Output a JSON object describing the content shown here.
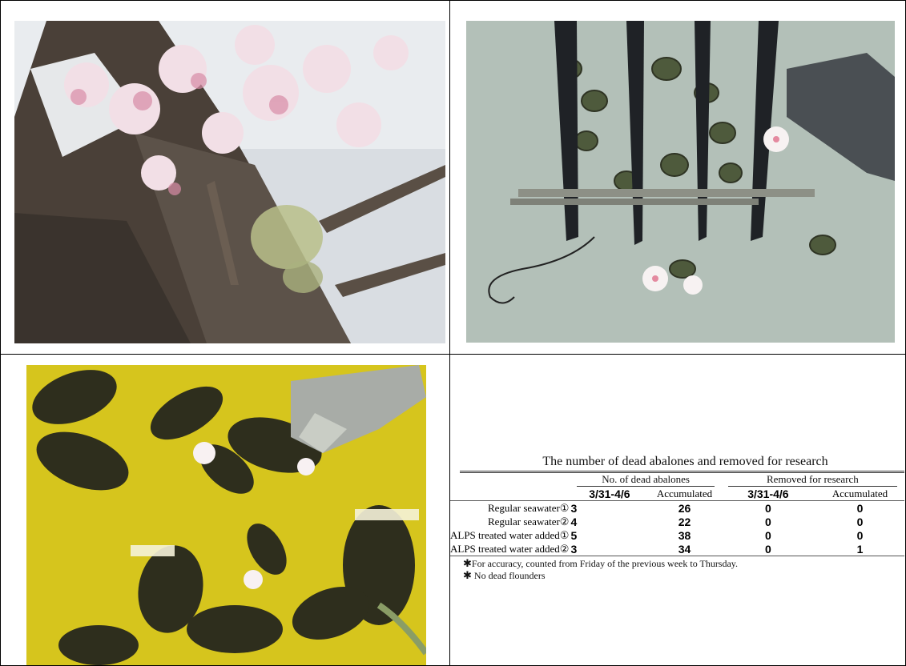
{
  "photos": {
    "cherry_blossoms": "cherry-blossom-photo",
    "abalone_tank": "abalone-tank-photo",
    "flounder_tank": "flounder-tank-photo"
  },
  "table": {
    "title": "The number of dead abalones and removed for research",
    "groups": [
      "No. of dead abalones",
      "Removed for research"
    ],
    "subheaders": [
      "3/31-4/6",
      "Accumulated",
      "3/31-4/6",
      "Accumulated"
    ],
    "rows": [
      {
        "label": "Regular seawater①",
        "dead_period": "3",
        "dead_acc": "26",
        "rem_period": "0",
        "rem_acc": "0"
      },
      {
        "label": "Regular seawater②",
        "dead_period": "4",
        "dead_acc": "22",
        "rem_period": "0",
        "rem_acc": "0"
      },
      {
        "label": "ALPS treated water added①",
        "dead_period": "5",
        "dead_acc": "38",
        "rem_period": "0",
        "rem_acc": "0"
      },
      {
        "label": "ALPS treated water added②",
        "dead_period": "3",
        "dead_acc": "34",
        "rem_period": "0",
        "rem_acc": "1"
      }
    ],
    "notes": [
      {
        "mark": "✱",
        "text": "For accuracy, counted from Friday of the previous week to Thursday."
      },
      {
        "mark": "✱",
        "text": "No dead flounders"
      }
    ]
  }
}
